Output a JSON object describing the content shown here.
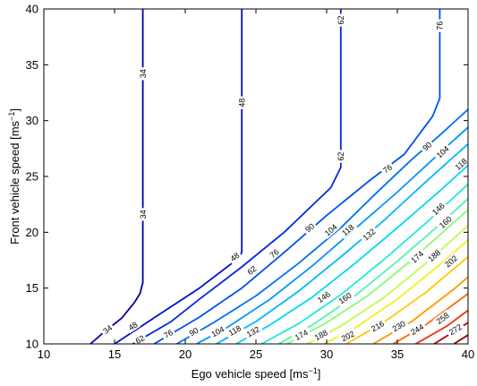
{
  "chart_data": {
    "type": "contour",
    "xlabel": "Ego vehicle speed [ms",
    "xlabel_sup": "−1",
    "xlabel_end": "]",
    "ylabel": "Front vehicle speed [ms",
    "ylabel_sup": "−1",
    "ylabel_end": "]",
    "xlim": [
      10,
      40
    ],
    "ylim": [
      10,
      40
    ],
    "xticks": [
      10,
      15,
      20,
      25,
      30,
      35,
      40
    ],
    "yticks": [
      10,
      15,
      20,
      25,
      30,
      35,
      40
    ],
    "grid": false,
    "levels": [
      {
        "value": "34",
        "color": "#0000a8",
        "points": [
          [
            13.3,
            10
          ],
          [
            14.2,
            11
          ],
          [
            15.5,
            12.3
          ],
          [
            16.4,
            13.7
          ],
          [
            16.8,
            14.5
          ],
          [
            17,
            15.5
          ],
          [
            17,
            40
          ]
        ],
        "labels": [
          [
            14.5,
            11.3
          ],
          [
            17,
            21.6
          ],
          [
            17,
            34.2
          ]
        ]
      },
      {
        "value": "48",
        "color": "#0010c8",
        "points": [
          [
            15.0,
            10
          ],
          [
            18,
            12.5
          ],
          [
            21,
            15
          ],
          [
            23.9,
            17.8
          ],
          [
            24,
            18.3
          ],
          [
            24,
            40
          ]
        ],
        "labels": [
          [
            16.3,
            11.6
          ],
          [
            23.5,
            17.8
          ],
          [
            24,
            31.6
          ]
        ]
      },
      {
        "value": "62",
        "color": "#0028e0",
        "points": [
          [
            16.3,
            10
          ],
          [
            19,
            12
          ],
          [
            21,
            14
          ],
          [
            24,
            16.9
          ],
          [
            27,
            20
          ],
          [
            30.3,
            24
          ],
          [
            31,
            25.8
          ],
          [
            31,
            40
          ]
        ],
        "labels": [
          [
            16.8,
            10.4
          ],
          [
            24.7,
            16.6
          ],
          [
            31,
            26.8
          ],
          [
            31,
            39
          ]
        ]
      },
      {
        "value": "76",
        "color": "#0050f0",
        "points": [
          [
            17.8,
            10
          ],
          [
            21,
            12.4
          ],
          [
            24,
            15
          ],
          [
            27,
            18.2
          ],
          [
            30,
            21.5
          ],
          [
            33,
            24.6
          ],
          [
            35.5,
            27
          ],
          [
            37.5,
            30.4
          ],
          [
            38,
            32
          ],
          [
            38,
            40
          ]
        ],
        "labels": [
          [
            18.8,
            10.9
          ],
          [
            26.3,
            18.1
          ],
          [
            34.3,
            25.7
          ],
          [
            38,
            38.5
          ]
        ]
      },
      {
        "value": "90",
        "color": "#0070f8",
        "points": [
          [
            19.4,
            10
          ],
          [
            22,
            11.9
          ],
          [
            25,
            14.3
          ],
          [
            28,
            17.2
          ],
          [
            31,
            20.4
          ],
          [
            33.5,
            23.5
          ],
          [
            36,
            26.5
          ],
          [
            38,
            28.7
          ],
          [
            40,
            31
          ]
        ],
        "labels": [
          [
            20.6,
            11.1
          ],
          [
            28.8,
            20.4
          ],
          [
            37.1,
            27.7
          ]
        ]
      },
      {
        "value": "104",
        "color": "#0095ff",
        "points": [
          [
            20.8,
            10
          ],
          [
            23,
            11.5
          ],
          [
            26,
            14
          ],
          [
            29,
            17
          ],
          [
            32,
            20.3
          ],
          [
            35,
            23.6
          ],
          [
            38,
            27.1
          ],
          [
            40,
            29.4
          ]
        ],
        "labels": [
          [
            22.3,
            11.1
          ],
          [
            30.3,
            20.2
          ],
          [
            38.2,
            27.2
          ]
        ]
      },
      {
        "value": "118",
        "color": "#00b6ff",
        "points": [
          [
            22.2,
            10
          ],
          [
            25,
            12
          ],
          [
            28,
            14.7
          ],
          [
            31,
            17.8
          ],
          [
            34,
            21
          ],
          [
            37,
            24.5
          ],
          [
            40,
            27.9
          ]
        ],
        "labels": [
          [
            23.5,
            11.2
          ],
          [
            31.5,
            20.2
          ],
          [
            39.5,
            26.1
          ]
        ]
      },
      {
        "value": "132",
        "color": "#00d8f0",
        "points": [
          [
            23.6,
            10
          ],
          [
            26,
            11.7
          ],
          [
            29,
            14.2
          ],
          [
            32,
            17.2
          ],
          [
            35,
            20.4
          ],
          [
            38,
            23.7
          ],
          [
            40,
            26
          ]
        ],
        "labels": [
          [
            24.8,
            11.1
          ],
          [
            33,
            19.8
          ]
        ]
      },
      {
        "value": "146",
        "color": "#20ead8",
        "points": [
          [
            25.4,
            10
          ],
          [
            28,
            11.8
          ],
          [
            31,
            14.4
          ],
          [
            34,
            17.5
          ],
          [
            37,
            20.8
          ],
          [
            40,
            24.3
          ]
        ],
        "labels": [
          [
            29.8,
            14.2
          ],
          [
            37.9,
            22.1
          ]
        ]
      },
      {
        "value": "160",
        "color": "#50f4b0",
        "points": [
          [
            26.6,
            10
          ],
          [
            29,
            11.7
          ],
          [
            32,
            14.3
          ],
          [
            35,
            17.4
          ],
          [
            38,
            20.7
          ],
          [
            40,
            23
          ]
        ],
        "labels": [
          [
            31.3,
            14.1
          ],
          [
            38.4,
            20.9
          ]
        ]
      },
      {
        "value": "174",
        "color": "#88fa78",
        "points": [
          [
            27.2,
            10
          ],
          [
            30,
            11.9
          ],
          [
            33,
            14.4
          ],
          [
            36,
            17.5
          ],
          [
            39,
            20.9
          ],
          [
            40,
            22
          ]
        ],
        "labels": [
          [
            28.2,
            10.8
          ],
          [
            36.4,
            17.8
          ]
        ]
      },
      {
        "value": "188",
        "color": "#c0fc48",
        "points": [
          [
            28.6,
            10
          ],
          [
            31,
            11.6
          ],
          [
            34,
            14.1
          ],
          [
            37,
            17.2
          ],
          [
            40,
            20.6
          ]
        ],
        "labels": [
          [
            29.6,
            10.8
          ],
          [
            37.6,
            17.9
          ]
        ]
      },
      {
        "value": "202",
        "color": "#f0f020",
        "points": [
          [
            29.8,
            10
          ],
          [
            32,
            11.4
          ],
          [
            35,
            14
          ],
          [
            38,
            17.1
          ],
          [
            40,
            19.3
          ]
        ],
        "labels": [
          [
            31.5,
            10.7
          ],
          [
            38.8,
            17.4
          ]
        ]
      },
      {
        "value": "216",
        "color": "#ffc800",
        "points": [
          [
            31.4,
            10
          ],
          [
            34,
            11.9
          ],
          [
            37,
            14.6
          ],
          [
            40,
            17.8
          ]
        ],
        "labels": [
          [
            33.6,
            11.6
          ]
        ]
      },
      {
        "value": "230",
        "color": "#ff9800",
        "points": [
          [
            33.3,
            10
          ],
          [
            36,
            12
          ],
          [
            39,
            14.9
          ],
          [
            40,
            16
          ]
        ],
        "labels": [
          [
            35.1,
            11.6
          ]
        ]
      },
      {
        "value": "244",
        "color": "#ff6800",
        "points": [
          [
            34.7,
            10
          ],
          [
            37,
            11.7
          ],
          [
            40,
            14.5
          ]
        ],
        "labels": [
          [
            36.4,
            11.3
          ]
        ]
      },
      {
        "value": "258",
        "color": "#f03000",
        "points": [
          [
            36.3,
            10
          ],
          [
            38.5,
            11.6
          ],
          [
            40,
            13
          ]
        ],
        "labels": [
          [
            38.2,
            12.3
          ]
        ]
      },
      {
        "value": "272",
        "color": "#c00000",
        "points": [
          [
            37.6,
            10
          ],
          [
            40,
            11.9
          ]
        ],
        "labels": [
          [
            39.1,
            11.3
          ]
        ]
      },
      {
        "value": "",
        "color": "#900000",
        "points": [
          [
            39.0,
            10
          ],
          [
            40,
            10.8
          ]
        ],
        "labels": []
      }
    ]
  }
}
